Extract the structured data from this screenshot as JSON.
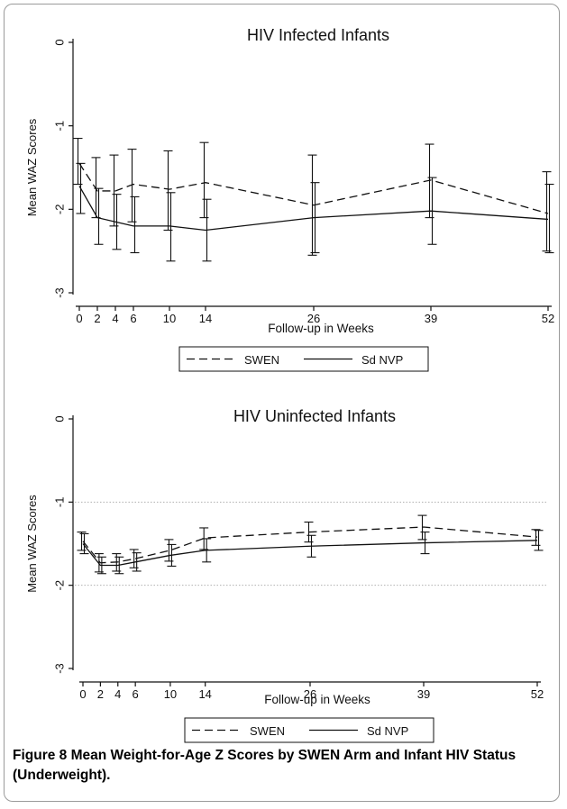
{
  "caption": {
    "figure_label": "Figure 8",
    "text": "Mean Weight-for-Age Z Scores by SWEN Arm and Infant HIV Status (Underweight)."
  },
  "legend_items": {
    "swen": "SWEN",
    "sdnvp": "Sd NVP"
  },
  "colors": {
    "line": "#111111",
    "refline": "#b0b0b0",
    "frame": "#9a9a9a"
  },
  "chart_data": [
    {
      "type": "line",
      "title": "HIV Infected Infants",
      "xlabel": "Follow-up in Weeks",
      "ylabel": "Mean WAZ Scores",
      "x": [
        0,
        2,
        4,
        6,
        10,
        14,
        26,
        39,
        52
      ],
      "x_tick_labels": [
        "0",
        "2",
        "4",
        "6",
        "10",
        "14",
        "26",
        "39",
        "52"
      ],
      "ylim": [
        -3,
        0
      ],
      "y_ticks": [
        0,
        -1,
        -2,
        -3
      ],
      "y_tick_labels": [
        "0",
        "-1",
        "-2",
        "-3"
      ],
      "reference_lines": [],
      "legend_position": "bottom",
      "series": [
        {
          "name": "SWEN",
          "style": "dashed",
          "values": [
            -1.45,
            -1.78,
            -1.78,
            -1.7,
            -1.76,
            -1.68,
            -1.95,
            -1.65,
            -2.05
          ],
          "ci_low": [
            -1.7,
            -2.1,
            -2.2,
            -2.15,
            -2.25,
            -2.1,
            -2.55,
            -2.1,
            -2.5
          ],
          "ci_high": [
            -1.15,
            -1.38,
            -1.35,
            -1.28,
            -1.3,
            -1.2,
            -1.35,
            -1.22,
            -1.55
          ]
        },
        {
          "name": "Sd NVP",
          "style": "solid",
          "values": [
            -1.72,
            -2.1,
            -2.15,
            -2.2,
            -2.2,
            -2.25,
            -2.1,
            -2.02,
            -2.12
          ],
          "ci_low": [
            -2.05,
            -2.42,
            -2.48,
            -2.52,
            -2.62,
            -2.62,
            -2.52,
            -2.42,
            -2.52
          ],
          "ci_high": [
            -1.45,
            -1.75,
            -1.82,
            -1.85,
            -1.8,
            -1.88,
            -1.68,
            -1.62,
            -1.7
          ]
        }
      ]
    },
    {
      "type": "line",
      "title": "HIV Uninfected Infants",
      "xlabel": "Follow-up in Weeks",
      "ylabel": "Mean WAZ Scores",
      "x": [
        0,
        2,
        4,
        6,
        10,
        14,
        26,
        39,
        52
      ],
      "x_tick_labels": [
        "0",
        "2",
        "4",
        "6",
        "10",
        "14",
        "26",
        "39",
        "52"
      ],
      "ylim": [
        -3,
        0
      ],
      "y_ticks": [
        0,
        -1,
        -2,
        -3
      ],
      "y_tick_labels": [
        "0",
        "-1",
        "-2",
        "-3"
      ],
      "reference_lines": [
        -1,
        -2
      ],
      "legend_position": "bottom",
      "series": [
        {
          "name": "SWEN",
          "style": "dashed",
          "values": [
            -1.47,
            -1.73,
            -1.72,
            -1.68,
            -1.58,
            -1.43,
            -1.36,
            -1.3,
            -1.42
          ],
          "ci_low": [
            -1.58,
            -1.84,
            -1.83,
            -1.79,
            -1.71,
            -1.57,
            -1.48,
            -1.45,
            -1.52
          ],
          "ci_high": [
            -1.36,
            -1.62,
            -1.62,
            -1.57,
            -1.45,
            -1.31,
            -1.24,
            -1.16,
            -1.33
          ]
        },
        {
          "name": "Sd NVP",
          "style": "solid",
          "values": [
            -1.5,
            -1.76,
            -1.76,
            -1.72,
            -1.64,
            -1.58,
            -1.53,
            -1.49,
            -1.46
          ],
          "ci_low": [
            -1.62,
            -1.86,
            -1.86,
            -1.83,
            -1.77,
            -1.72,
            -1.66,
            -1.62,
            -1.58
          ],
          "ci_high": [
            -1.38,
            -1.66,
            -1.66,
            -1.61,
            -1.51,
            -1.44,
            -1.4,
            -1.36,
            -1.34
          ]
        }
      ]
    }
  ]
}
